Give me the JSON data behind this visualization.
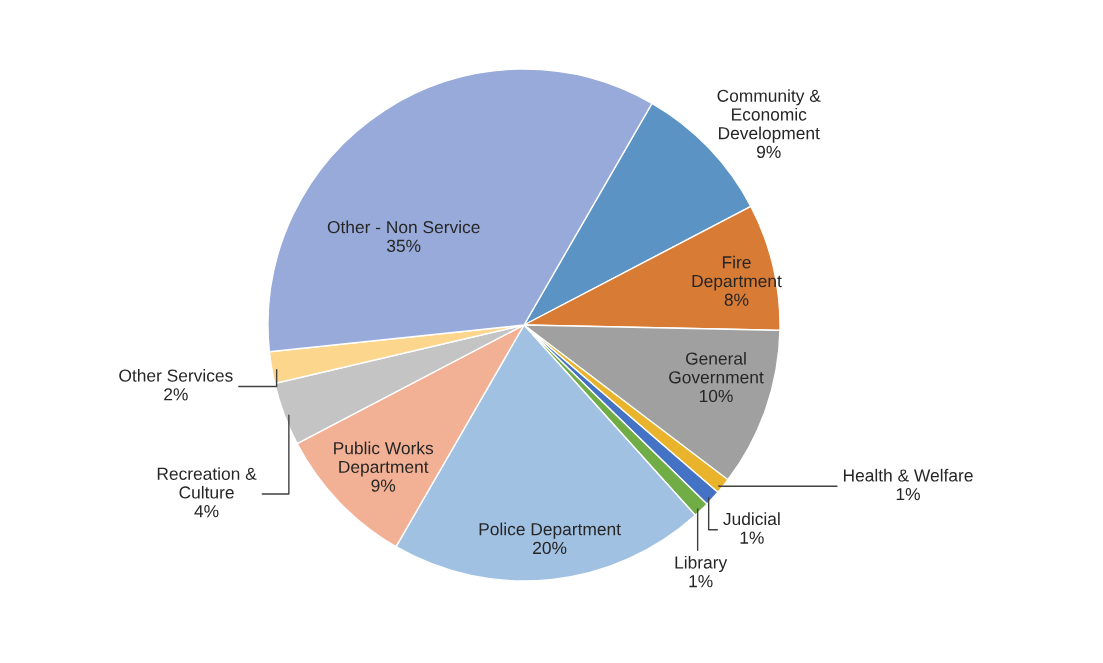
{
  "chart_data": {
    "type": "pie",
    "categories": [
      "Community &\nEconomic\nDevelopment",
      "Fire\nDepartment",
      "General\nGovernment",
      "Health & Welfare",
      "Judicial",
      "Library",
      "Police Department",
      "Public Works\nDepartment",
      "Recreation &\nCulture",
      "Other Services",
      "Other - Non Service"
    ],
    "values": [
      9,
      8,
      10,
      1,
      1,
      1,
      20,
      9,
      4,
      2,
      35
    ],
    "colors": [
      "#5b93c4",
      "#d87b35",
      "#a0a0a0",
      "#e9b32b",
      "#4472c4",
      "#70ad47",
      "#a1c1e3",
      "#f2b094",
      "#c4c4c4",
      "#fdd68e",
      "#98aad9"
    ],
    "value_labels": [
      "9%",
      "8%",
      "10%",
      "1%",
      "1%",
      "1%",
      "20%",
      "9%",
      "4%",
      "2%",
      "35%"
    ],
    "legend": false
  }
}
